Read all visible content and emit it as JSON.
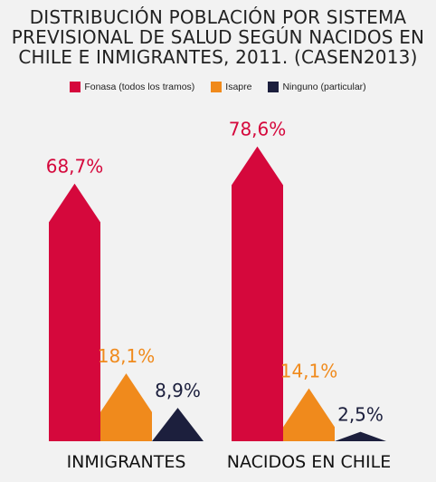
{
  "title_lines": [
    "DISTRIBUCIÓN POBLACIÓN POR SISTEMA",
    "PREVISIONAL DE SALUD SEGÚN NACIDOS EN",
    "CHILE E INMIGRANTES, 2011. (CASEN2013)"
  ],
  "chart_data": {
    "type": "bar",
    "title": "DISTRIBUCIÓN POBLACIÓN POR SISTEMA PREVISIONAL DE SALUD SEGÚN NACIDOS EN CHILE E INMIGRANTES, 2011. (CASEN2013)",
    "categories": [
      "INMIGRANTES",
      "NACIDOS EN CHILE"
    ],
    "series": [
      {
        "name": "Fonasa (todos los tramos)",
        "values": [
          68.7,
          78.6
        ],
        "labels": [
          "68,7%",
          "78,6%"
        ],
        "color": "#d5083c"
      },
      {
        "name": "Isapre",
        "values": [
          18.1,
          14.1
        ],
        "labels": [
          "18,1%",
          "14,1%"
        ],
        "color": "#f08a1c"
      },
      {
        "name": "Ninguno (particular)",
        "values": [
          8.9,
          2.5
        ],
        "labels": [
          "8,9%",
          "2,5%"
        ],
        "color": "#1c1f3d"
      }
    ],
    "legend_position": "top",
    "grid": false,
    "ylim": [
      0,
      100
    ],
    "xlabel": "",
    "ylabel": ""
  }
}
